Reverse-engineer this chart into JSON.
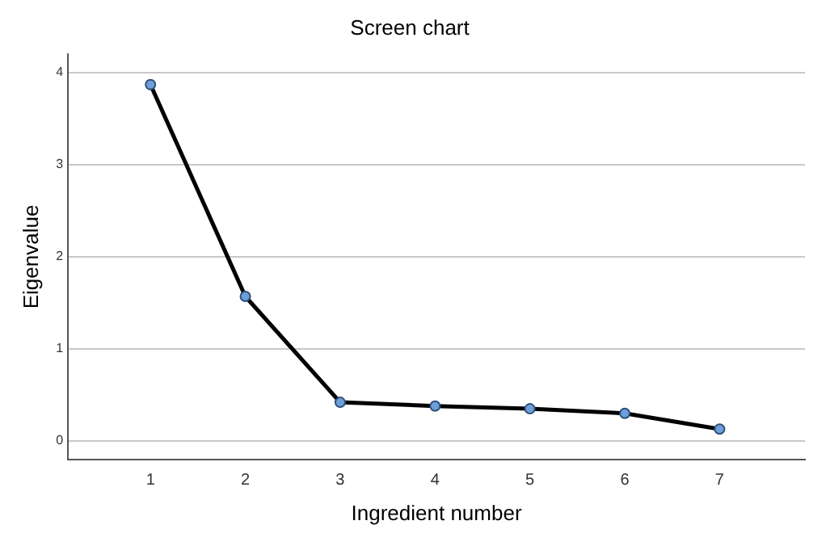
{
  "chart_data": {
    "type": "line",
    "title": "Screen chart",
    "xlabel": "Ingredient number",
    "ylabel": "Eigenvalue",
    "x": [
      1,
      2,
      3,
      4,
      5,
      6,
      7
    ],
    "series": [
      {
        "color": "#000000",
        "values": [
          3.87,
          1.57,
          0.42,
          0.38,
          0.35,
          0.3,
          0.13
        ]
      }
    ],
    "xlim": [
      0.13,
      7.9
    ],
    "xticks": [
      1,
      2,
      3,
      4,
      5,
      6,
      7
    ],
    "ylim": [
      -0.2,
      4.2
    ],
    "yticks": [
      0,
      1,
      2,
      3,
      4
    ],
    "grid": "y",
    "legend": false,
    "marker": "circle",
    "line_style": "solid"
  }
}
